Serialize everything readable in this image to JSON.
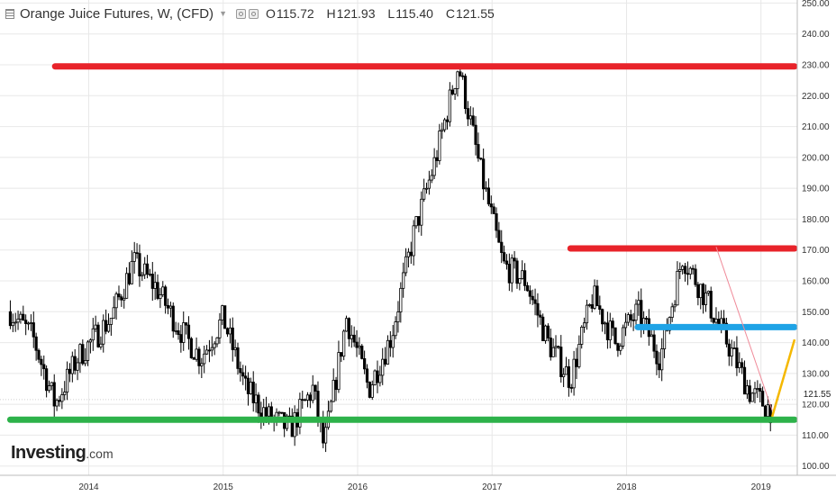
{
  "header": {
    "title": "Orange Juice Futures, W, (CFD)",
    "open_label": "O",
    "open": "115.72",
    "high_label": "H",
    "high": "121.93",
    "low_label": "L",
    "low": "115.40",
    "close_label": "C",
    "close": "121.55"
  },
  "brand": {
    "name": "Investing",
    "suffix": ".com"
  },
  "colors": {
    "resistance": "#e8232a",
    "support": "#2db24a",
    "middle": "#1fa3e6",
    "trendline_up": "#f5b800",
    "trendline_down": "#f08a99",
    "candles": "#000000",
    "grid": "#e8e8e8"
  },
  "chart_data": {
    "type": "candlestick",
    "title": "Orange Juice Futures, W, (CFD)",
    "xlabel": "",
    "ylabel": "",
    "x_ticks": [
      "2014",
      "2015",
      "2016",
      "2017",
      "2018",
      "2019"
    ],
    "y_ticks": [
      100,
      110,
      120,
      130,
      140,
      150,
      160,
      170,
      180,
      190,
      200,
      210,
      220,
      230,
      240,
      250
    ],
    "ylim": [
      97,
      251
    ],
    "last_price": 121.55,
    "grid": true,
    "price_path": [
      [
        "2013-06",
        150
      ],
      [
        "2013-08",
        142
      ],
      [
        "2013-10",
        120
      ],
      [
        "2013-12",
        135
      ],
      [
        "2014-03",
        148
      ],
      [
        "2014-05",
        166
      ],
      [
        "2014-07",
        158
      ],
      [
        "2014-09",
        145
      ],
      [
        "2014-11",
        135
      ],
      [
        "2015-01",
        148
      ],
      [
        "2015-03",
        125
      ],
      [
        "2015-05",
        116
      ],
      [
        "2015-07",
        112
      ],
      [
        "2015-09",
        125
      ],
      [
        "2015-10",
        106
      ],
      [
        "2015-12",
        148
      ],
      [
        "2016-02",
        125
      ],
      [
        "2016-04",
        142
      ],
      [
        "2016-06",
        175
      ],
      [
        "2016-08",
        200
      ],
      [
        "2016-10",
        230
      ],
      [
        "2016-12",
        195
      ],
      [
        "2017-02",
        165
      ],
      [
        "2017-04",
        160
      ],
      [
        "2017-06",
        140
      ],
      [
        "2017-08",
        128
      ],
      [
        "2017-10",
        155
      ],
      [
        "2017-12",
        140
      ],
      [
        "2018-02",
        150
      ],
      [
        "2018-04",
        135
      ],
      [
        "2018-06",
        168
      ],
      [
        "2018-08",
        155
      ],
      [
        "2018-10",
        140
      ],
      [
        "2018-12",
        124
      ],
      [
        "2019-02",
        118
      ]
    ],
    "annotations": [
      {
        "type": "hline",
        "value": 229.5,
        "from": "2013-10",
        "to": "2019-04",
        "color": "#e8232a"
      },
      {
        "type": "hline",
        "value": 170.5,
        "from": "2017-08",
        "to": "2019-04",
        "color": "#e8232a"
      },
      {
        "type": "hline",
        "value": 145.0,
        "from": "2018-02",
        "to": "2019-04",
        "color": "#1fa3e6"
      },
      {
        "type": "hline",
        "value": 115.0,
        "from": "2013-06",
        "to": "2019-04",
        "color": "#2db24a"
      },
      {
        "type": "line",
        "from": [
          "2019-02",
          116
        ],
        "to": [
          "2019-04",
          141
        ],
        "color": "#f5b800"
      },
      {
        "type": "line",
        "from": [
          "2018-09",
          171
        ],
        "to": [
          "2019-02",
          118
        ],
        "color": "#f08a99"
      }
    ]
  }
}
